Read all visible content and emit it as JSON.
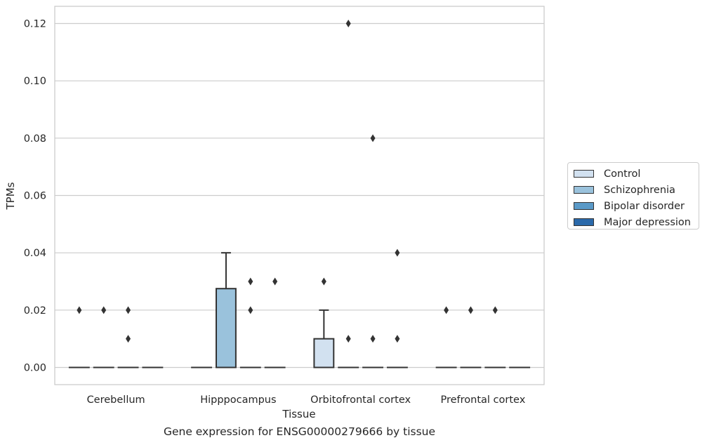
{
  "chart_data": {
    "type": "boxplot",
    "xlabel": "Tissue",
    "ylabel": "TPMs",
    "caption": "Gene expression for ENSG00000279666 by tissue",
    "ylim": [
      -0.006,
      0.126
    ],
    "yticks": [
      "0.00",
      "0.02",
      "0.04",
      "0.06",
      "0.08",
      "0.10",
      "0.12"
    ],
    "grid": "horizontal",
    "legend_position": "right",
    "categories": [
      "Cerebellum",
      "Hipppocampus",
      "Orbitofrontal cortex",
      "Prefrontal cortex"
    ],
    "series": [
      {
        "name": "Control",
        "color": "#d2e1f0"
      },
      {
        "name": "Schizophrenia",
        "color": "#9ac2dc"
      },
      {
        "name": "Bipolar disorder",
        "color": "#5a9ac8"
      },
      {
        "name": "Major depression",
        "color": "#2a69aa"
      }
    ],
    "boxes": [
      [
        {
          "q1": 0,
          "median": 0,
          "q3": 0,
          "whislo": 0,
          "whishi": 0,
          "fliers": [
            0.02
          ]
        },
        {
          "q1": 0,
          "median": 0,
          "q3": 0,
          "whislo": 0,
          "whishi": 0,
          "fliers": [
            0.02
          ]
        },
        {
          "q1": 0,
          "median": 0,
          "q3": 0,
          "whislo": 0,
          "whishi": 0,
          "fliers": [
            0.02,
            0.01
          ]
        },
        {
          "q1": 0,
          "median": 0,
          "q3": 0,
          "whislo": 0,
          "whishi": 0,
          "fliers": []
        }
      ],
      [
        {
          "q1": 0,
          "median": 0,
          "q3": 0,
          "whislo": 0,
          "whishi": 0,
          "fliers": []
        },
        {
          "q1": 0,
          "median": 0,
          "q3": 0.0275,
          "whislo": 0,
          "whishi": 0.04,
          "fliers": []
        },
        {
          "q1": 0,
          "median": 0,
          "q3": 0,
          "whislo": 0,
          "whishi": 0,
          "fliers": [
            0.03,
            0.02
          ]
        },
        {
          "q1": 0,
          "median": 0,
          "q3": 0,
          "whislo": 0,
          "whishi": 0,
          "fliers": [
            0.03
          ]
        }
      ],
      [
        {
          "q1": 0,
          "median": 0,
          "q3": 0.01,
          "whislo": 0,
          "whishi": 0.02,
          "fliers": [
            0.03
          ]
        },
        {
          "q1": 0,
          "median": 0,
          "q3": 0,
          "whislo": 0,
          "whishi": 0,
          "fliers": [
            0.12,
            0.01
          ]
        },
        {
          "q1": 0,
          "median": 0,
          "q3": 0,
          "whislo": 0,
          "whishi": 0,
          "fliers": [
            0.08,
            0.01
          ]
        },
        {
          "q1": 0,
          "median": 0,
          "q3": 0,
          "whislo": 0,
          "whishi": 0,
          "fliers": [
            0.04,
            0.01
          ]
        }
      ],
      [
        {
          "q1": 0,
          "median": 0,
          "q3": 0,
          "whislo": 0,
          "whishi": 0,
          "fliers": [
            0.02
          ]
        },
        {
          "q1": 0,
          "median": 0,
          "q3": 0,
          "whislo": 0,
          "whishi": 0,
          "fliers": [
            0.02
          ]
        },
        {
          "q1": 0,
          "median": 0,
          "q3": 0,
          "whislo": 0,
          "whishi": 0,
          "fliers": [
            0.02
          ]
        },
        {
          "q1": 0,
          "median": 0,
          "q3": 0,
          "whislo": 0,
          "whishi": 0,
          "fliers": []
        }
      ]
    ]
  }
}
